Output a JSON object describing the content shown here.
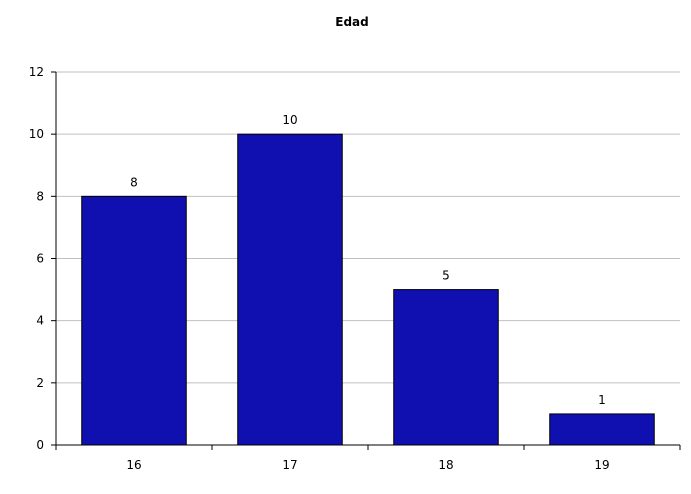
{
  "chart_data": {
    "type": "bar",
    "title": "Edad",
    "xlabel": "",
    "ylabel": "",
    "categories": [
      "16",
      "17",
      "18",
      "19"
    ],
    "values": [
      8,
      10,
      5,
      1
    ],
    "data_labels": [
      "8",
      "10",
      "5",
      "1"
    ],
    "ylim": [
      0,
      12
    ],
    "yticks": [
      0,
      2,
      4,
      6,
      8,
      10,
      12
    ],
    "grid": "horizontal",
    "legend": "none",
    "colors": {
      "bar_fill": "#1010B0",
      "bar_stroke": "#000000",
      "gridline": "#c0c0c0",
      "axis": "#000000"
    }
  }
}
